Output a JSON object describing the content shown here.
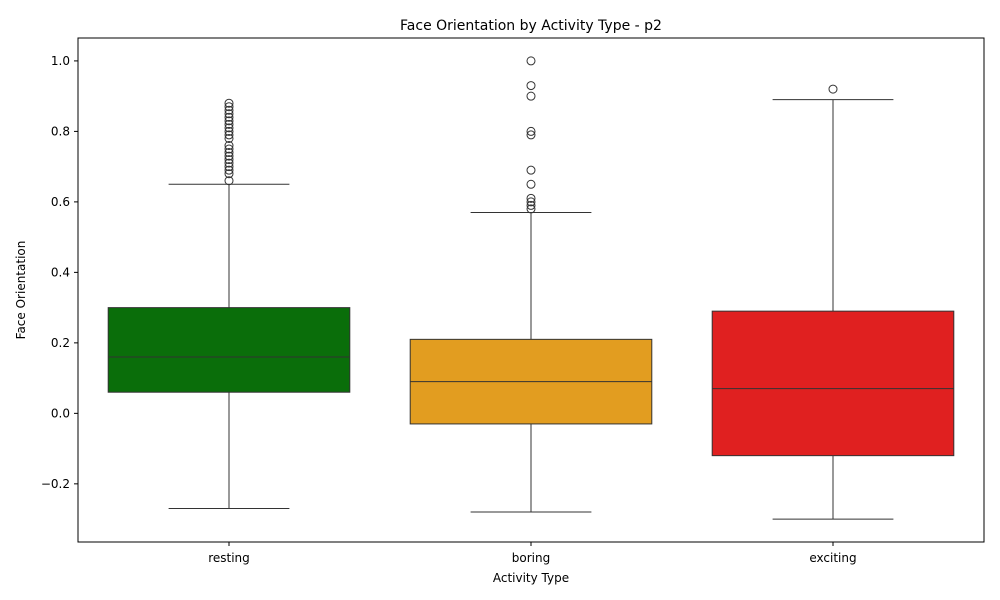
{
  "chart_data": {
    "type": "box",
    "title": "Face Orientation by Activity Type - p2",
    "xlabel": "Activity Type",
    "ylabel": "Face Orientation",
    "ylim": [
      -0.365,
      1.065
    ],
    "yticks": [
      -0.2,
      0.0,
      0.2,
      0.4,
      0.6,
      0.8,
      1.0
    ],
    "ytick_labels": [
      "−0.2",
      "0.0",
      "0.2",
      "0.4",
      "0.6",
      "0.8",
      "1.0"
    ],
    "grid": false,
    "categories": [
      "resting",
      "boring",
      "exciting"
    ],
    "colors": [
      "#0a6e0a",
      "#e29d20",
      "#e02020"
    ],
    "boxes": [
      {
        "category": "resting",
        "whisker_low": -0.27,
        "q1": 0.06,
        "median": 0.16,
        "q3": 0.3,
        "whisker_high": 0.65,
        "outliers": [
          0.66,
          0.68,
          0.69,
          0.7,
          0.71,
          0.72,
          0.73,
          0.74,
          0.75,
          0.76,
          0.78,
          0.79,
          0.8,
          0.81,
          0.82,
          0.83,
          0.84,
          0.85,
          0.86,
          0.87,
          0.88
        ]
      },
      {
        "category": "boring",
        "whisker_low": -0.28,
        "q1": -0.03,
        "median": 0.09,
        "q3": 0.21,
        "whisker_high": 0.57,
        "outliers": [
          0.58,
          0.59,
          0.6,
          0.61,
          0.65,
          0.69,
          0.79,
          0.8,
          0.9,
          0.93,
          1.0
        ]
      },
      {
        "category": "exciting",
        "whisker_low": -0.3,
        "q1": -0.12,
        "median": 0.07,
        "q3": 0.29,
        "whisker_high": 0.89,
        "outliers": [
          0.92
        ]
      }
    ]
  }
}
